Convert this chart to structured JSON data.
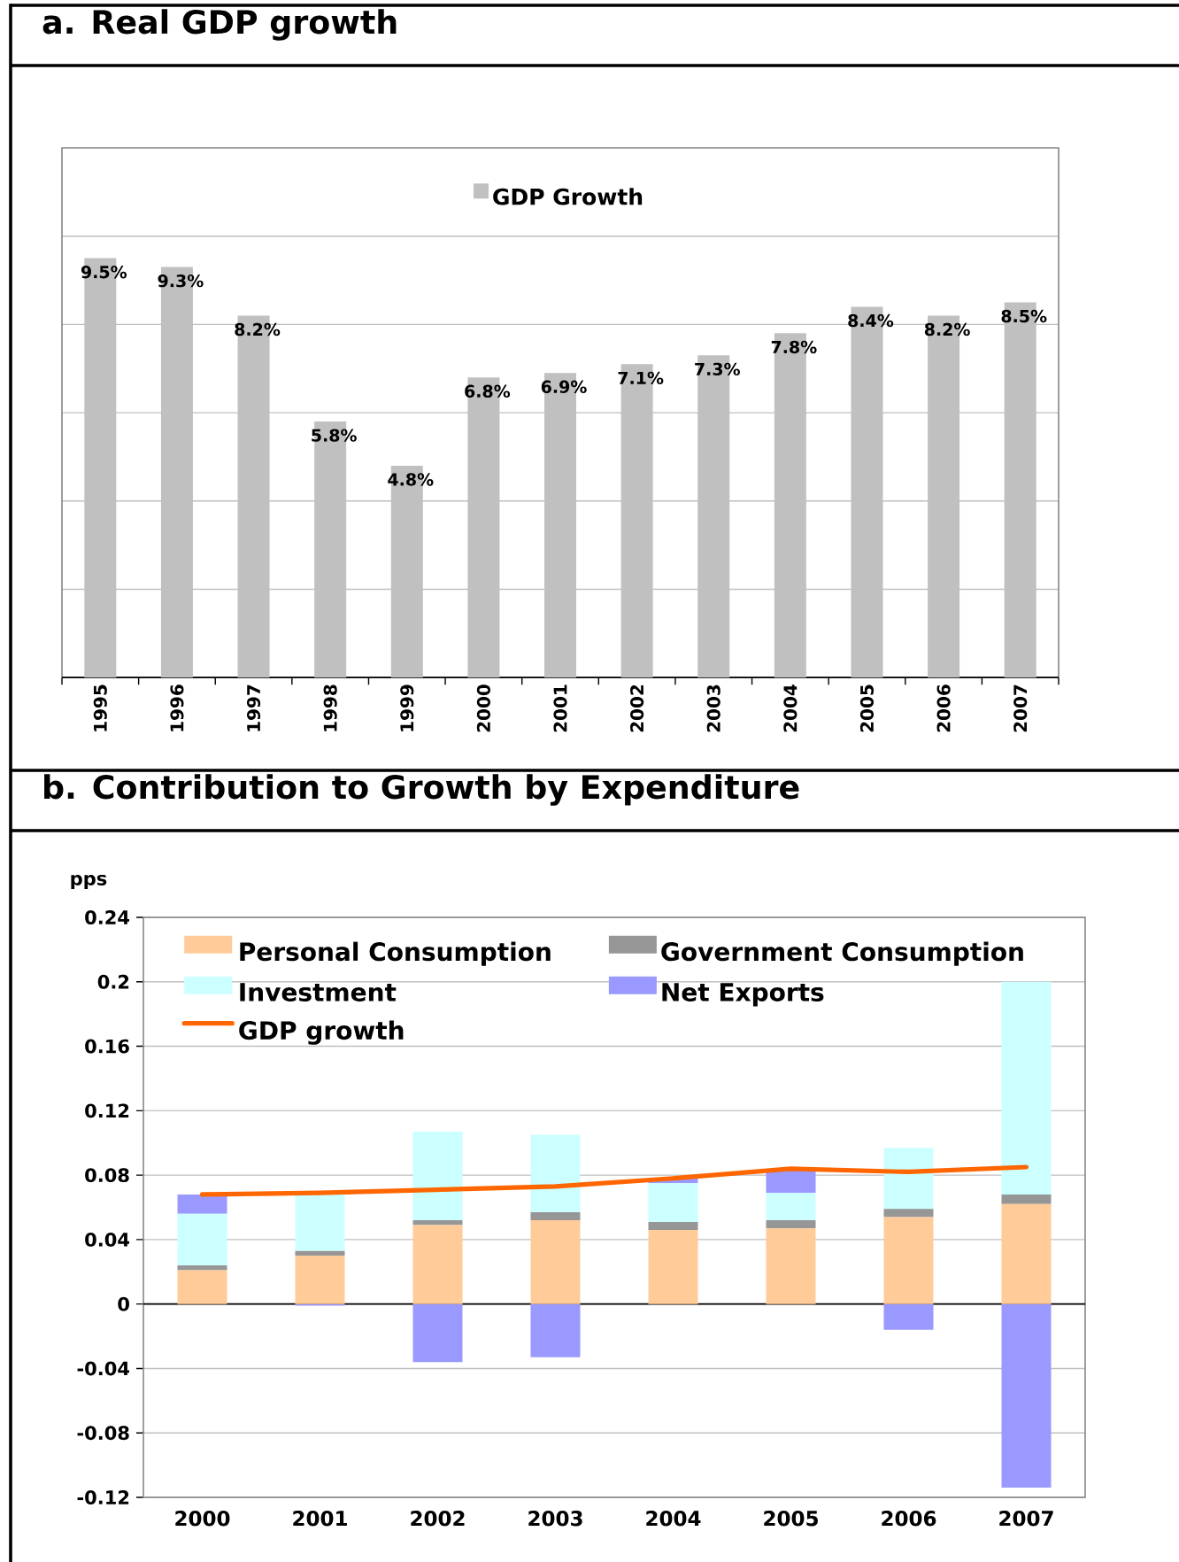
{
  "chart_data": [
    {
      "type": "bar",
      "title": "a. Real GDP growth",
      "categories": [
        "1995",
        "1996",
        "1997",
        "1998",
        "1999",
        "2000",
        "2001",
        "2002",
        "2003",
        "2004",
        "2005",
        "2006",
        "2007"
      ],
      "series": [
        {
          "name": "GDP Growth",
          "color": "#c0c0c0",
          "values": [
            9.5,
            9.3,
            8.2,
            5.8,
            4.8,
            6.8,
            6.9,
            7.1,
            7.3,
            7.8,
            8.4,
            8.2,
            8.5
          ],
          "value_labels": [
            "9.5%",
            "9.3%",
            "8.2%",
            "5.8%",
            "4.8%",
            "6.8%",
            "6.9%",
            "7.1%",
            "7.3%",
            "7.8%",
            "8.4%",
            "8.2%",
            "8.5%"
          ]
        }
      ],
      "ylim": [
        0,
        12
      ],
      "yticks": [
        {
          "value": 2,
          "label": null
        },
        {
          "value": 4,
          "label": null
        },
        {
          "value": 6,
          "label": null
        },
        {
          "value": 8,
          "label": null
        },
        {
          "value": 10,
          "label": null
        }
      ],
      "grid": "y",
      "legend": "top",
      "tick_labels": "x"
    },
    {
      "type": "bar",
      "title": "b. Contribution to Growth by Expenditure",
      "ylabel": "pps",
      "categories": [
        "2000",
        "2001",
        "2002",
        "2003",
        "2004",
        "2005",
        "2006",
        "2007"
      ],
      "stacked": true,
      "series": [
        {
          "name": "Personal Consumption",
          "color": "#ffcc99",
          "values": [
            0.021,
            0.03,
            0.049,
            0.052,
            0.046,
            0.047,
            0.054,
            0.062
          ]
        },
        {
          "name": "Government Consumption",
          "color": "#969696",
          "values": [
            0.003,
            0.003,
            0.003,
            0.005,
            0.005,
            0.005,
            0.005,
            0.006
          ]
        },
        {
          "name": "Investment",
          "color": "#ccffff",
          "values": [
            0.032,
            0.035,
            0.055,
            0.048,
            0.024,
            0.017,
            0.038,
            0.132
          ]
        },
        {
          "name": "Net Exports",
          "color": "#9999ff",
          "values": [
            0.012,
            -0.001,
            -0.036,
            -0.033,
            0.003,
            0.014,
            -0.016,
            -0.114
          ]
        },
        {
          "name": "GDP growth",
          "type": "line",
          "color": "#ff6600",
          "values": [
            0.068,
            0.069,
            0.071,
            0.073,
            0.078,
            0.084,
            0.082,
            0.085
          ]
        }
      ],
      "ylim": [
        -0.12,
        0.24
      ],
      "yticks": [
        -0.12,
        -0.08,
        -0.04,
        0,
        0.04,
        0.08,
        0.12,
        0.16,
        0.2,
        0.24
      ],
      "grid": "y",
      "legend": "top left"
    }
  ]
}
